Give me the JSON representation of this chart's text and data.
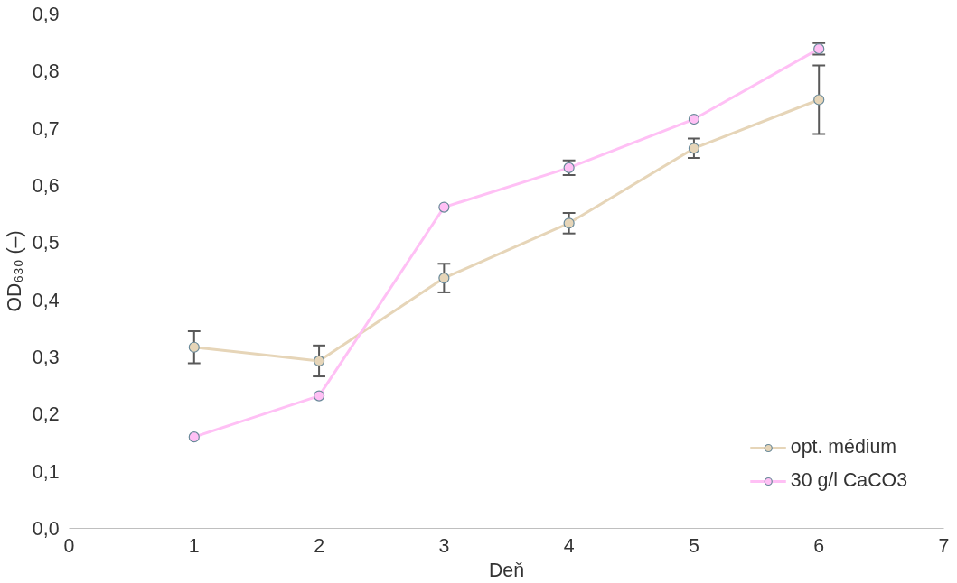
{
  "chart_data": {
    "type": "line",
    "xlabel": "Deň",
    "ylabel": "OD₆₃₀ (–)",
    "x": [
      1,
      2,
      3,
      4,
      5,
      6
    ],
    "series": [
      {
        "name": "opt. médium",
        "color": "#e6d5b8",
        "values": [
          0.317,
          0.293,
          0.438,
          0.534,
          0.665,
          0.75
        ],
        "errors": [
          0.028,
          0.027,
          0.025,
          0.018,
          0.017,
          0.06
        ]
      },
      {
        "name": "30 g/l CaCO3",
        "color": "#ffc0f5",
        "values": [
          0.16,
          0.232,
          0.562,
          0.631,
          0.716,
          0.839
        ],
        "errors": [
          null,
          null,
          null,
          0.013,
          null,
          0.01
        ]
      }
    ],
    "xlim": [
      0,
      7
    ],
    "xticks": [
      0,
      1,
      2,
      3,
      4,
      5,
      6,
      7
    ],
    "ylim": [
      0,
      0.9
    ],
    "yticks": [
      {
        "value": 0,
        "label": "0,0"
      },
      {
        "value": 0.1,
        "label": "0,1"
      },
      {
        "value": 0.2,
        "label": "0,2"
      },
      {
        "value": 0.3,
        "label": "0,3"
      },
      {
        "value": 0.4,
        "label": "0,4"
      },
      {
        "value": 0.5,
        "label": "0,5"
      },
      {
        "value": 0.6,
        "label": "0,6"
      },
      {
        "value": 0.7,
        "label": "0,7"
      },
      {
        "value": 0.8,
        "label": "0,8"
      },
      {
        "value": 0.9,
        "label": "0,9"
      }
    ],
    "marker": "circle",
    "line_style": "solid",
    "grid": false,
    "legend": "bottom right"
  }
}
